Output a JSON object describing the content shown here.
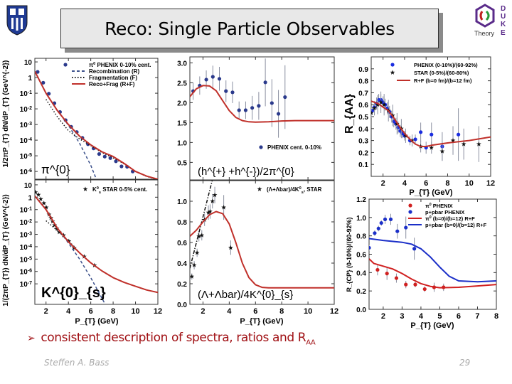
{
  "slide": {
    "title": "Reco: Single Particle Observables",
    "bullet_marker": "➢",
    "bullet_text": "consistent description of spectra, ratios and R",
    "bullet_sub": "AA",
    "author": "Steffen A. Bass",
    "page_number": "29",
    "logo_left": "Duke University shield",
    "logo_right": {
      "letters": "DUKE",
      "word": "Theory"
    }
  },
  "chart_data": [
    {
      "type": "scatter",
      "yscale": "log",
      "xlim": [
        1,
        12
      ],
      "ylim": [
        3.2e-07,
        17
      ],
      "xticks": [
        2,
        4,
        6,
        8,
        10,
        12
      ],
      "xtick_labels": false,
      "yticks": [
        10,
        1,
        0.1,
        0.01,
        0.001,
        0.0001,
        1e-05,
        1e-06
      ],
      "xlabel": "",
      "ylabel": "1/2πP_{T} dN/dP_{T} (GeV^{-2})",
      "annotation": "π^{0}",
      "series": [
        {
          "name": "π^{0} PHENIX 0-10% cent.",
          "kind": "points",
          "marker": "circle",
          "color": "#2b3a8c",
          "x": [
            1.25,
            1.75,
            2.25,
            2.75,
            3.25,
            3.75,
            4.25,
            4.75,
            5.25,
            5.75,
            6.25,
            6.75,
            7.25,
            7.75,
            8.25,
            8.75,
            9.25,
            9.75
          ],
          "y": [
            2.3,
            0.47,
            0.093,
            0.023,
            0.0063,
            0.0019,
            0.00071,
            0.00033,
            0.00014,
            5.5e-05,
            3e-05,
            1.3e-05,
            8.9e-06,
            7.2e-06,
            4.5e-06,
            2.1e-06,
            2e-06,
            1e-06
          ]
        },
        {
          "name": "Recombination (R)",
          "kind": "line",
          "style": "dashed",
          "color": "#3a4f8a",
          "x": [
            1,
            2,
            3,
            4,
            5,
            6,
            6.5
          ],
          "y": [
            2.5,
            0.1,
            0.0079,
            0.00089,
            6.3e-05,
            2.5e-06,
            3.2e-07
          ]
        },
        {
          "name": "Fragmentation (F)",
          "kind": "line",
          "style": "dotted",
          "color": "#111111",
          "x": [
            2,
            3,
            4,
            5,
            6,
            7,
            8,
            9,
            10,
            11,
            12
          ],
          "y": [
            0.04,
            0.0032,
            0.0004,
            0.00012,
            4.5e-05,
            1.6e-05,
            7.5e-06,
            3e-06,
            1e-06,
            4.8e-07,
            3e-07
          ]
        },
        {
          "name": "Reco+Frag (R+F)",
          "kind": "line",
          "style": "solid",
          "color": "#c0302a",
          "x": [
            1,
            2,
            3,
            4,
            5,
            6,
            7,
            8,
            9,
            10,
            11,
            12
          ],
          "y": [
            2.5,
            0.1,
            0.0079,
            0.001,
            0.00018,
            5e-05,
            1.8e-05,
            9e-06,
            3.2e-06,
            1e-06,
            5e-07,
            3.2e-07
          ]
        }
      ]
    },
    {
      "type": "scatter",
      "yscale": "log",
      "xlim": [
        1,
        12
      ],
      "ylim": [
        2.2e-09,
        25
      ],
      "xticks": [
        2,
        4,
        6,
        8,
        10,
        12
      ],
      "xtick_labels": true,
      "yticks": [
        10,
        1,
        0.1,
        0.01,
        0.001,
        0.0001,
        1e-05,
        1e-06,
        1e-07
      ],
      "xlabel": "P_{T} (GeV)",
      "ylabel": "1/(2πP_{T}) dN/dP_{T} (GeV^{-2})",
      "annotation": "K^{0}_{s}",
      "series": [
        {
          "name": "K^{0}_{s} STAR 0-5% cent.",
          "kind": "points",
          "marker": "star",
          "color": "#111111",
          "x": [
            1.06,
            1.32,
            1.53,
            1.81,
            2.02,
            2.27,
            2.44,
            2.59,
            2.76,
            2.97,
            3.18,
            3.57,
            4.04,
            4.52,
            5.41,
            6.33
          ],
          "y": [
            2.5,
            1.6,
            0.71,
            0.33,
            0.15,
            0.04,
            0.021,
            0.011,
            0.0055,
            0.0029,
            0.0015,
            0.00083,
            0.00028,
            7.9e-05,
            1.6e-05,
            3.1e-06
          ]
        },
        {
          "kind": "line",
          "style": "dashed",
          "color": "#3a4f8a",
          "x": [
            1,
            2,
            3,
            4,
            5,
            6,
            7.2
          ],
          "y": [
            1.26,
            0.1,
            0.0032,
            0.0002,
            1e-05,
            3.2e-07,
            3.2e-09
          ]
        },
        {
          "kind": "line",
          "style": "dotted",
          "color": "#111111",
          "x": [
            2,
            3,
            4,
            5,
            6,
            7,
            8,
            9,
            10,
            11,
            12
          ],
          "y": [
            0.0126,
            0.002,
            0.00032,
            3.2e-05,
            5e-06,
            1.1e-06,
            3.2e-07,
            1.3e-07,
            6.3e-08,
            3.2e-08,
            2e-08
          ]
        },
        {
          "kind": "line",
          "style": "solid",
          "color": "#c0302a",
          "x": [
            1,
            2,
            3,
            4,
            5,
            6,
            7,
            8,
            9,
            10,
            11,
            12
          ],
          "y": [
            1.26,
            0.1,
            0.0032,
            0.00025,
            3.2e-05,
            5e-06,
            1.1e-06,
            3.2e-07,
            1.3e-07,
            6.3e-08,
            3.2e-08,
            2e-08
          ]
        }
      ]
    },
    {
      "type": "scatter",
      "yscale": "linear",
      "xlim": [
        1,
        12
      ],
      "ylim": [
        0.06,
        3.15
      ],
      "xticks": [
        2,
        4,
        6,
        8,
        10,
        12
      ],
      "xtick_labels": false,
      "yticks": [
        0.5,
        1.0,
        1.5,
        2.0,
        2.5,
        3.0
      ],
      "ytick_decimals": 1,
      "xlabel": "",
      "ylabel": "",
      "annotation": "(h^{+} +h^{-})/2π^{0}",
      "series": [
        {
          "name": "PHENIX cent. 0-10%",
          "kind": "points",
          "marker": "circle",
          "color": "#2b3a8c",
          "x": [
            1.25,
            1.75,
            2.25,
            2.75,
            3.25,
            3.75,
            4.25,
            4.75,
            5.25,
            5.75,
            6.25,
            6.75,
            7.25,
            7.75,
            8.25
          ],
          "y": [
            2.29,
            2.43,
            2.58,
            2.65,
            2.6,
            2.29,
            2.26,
            1.81,
            1.81,
            1.87,
            1.92,
            2.51,
            1.99,
            1.72,
            2.14
          ],
          "err": [
            0.22,
            0.23,
            0.23,
            0.28,
            0.3,
            0.27,
            0.27,
            0.22,
            0.22,
            0.3,
            0.35,
            0.6,
            0.6,
            0.6,
            0.8
          ]
        },
        {
          "kind": "line",
          "style": "solid",
          "color": "#c0302a",
          "x": [
            1,
            1.5,
            2,
            2.5,
            3,
            3.5,
            4,
            4.5,
            5,
            5.5,
            6,
            7,
            8,
            9,
            12
          ],
          "y": [
            2.15,
            2.35,
            2.43,
            2.42,
            2.3,
            2.05,
            1.8,
            1.63,
            1.55,
            1.52,
            1.51,
            1.52,
            1.54,
            1.55,
            1.55
          ]
        }
      ]
    },
    {
      "type": "scatter",
      "yscale": "linear",
      "xlim": [
        1,
        12
      ],
      "ylim": [
        0,
        1.2
      ],
      "xticks": [
        2,
        4,
        6,
        8,
        10,
        12
      ],
      "xtick_labels": true,
      "yticks": [
        0,
        0.2,
        0.4,
        0.6,
        0.8,
        1.0
      ],
      "ytick_decimals": 1,
      "xlabel": "P_{T} (GeV)",
      "ylabel": "",
      "annotation": "(Λ+Λbar)/4K^{0}_{s}",
      "series": [
        {
          "name": "(Λ+Λbar)/4K^{0}_{s}, STAR",
          "kind": "points",
          "marker": "star",
          "color": "#111111",
          "x": [
            1.15,
            1.33,
            1.55,
            1.69,
            1.91,
            2.12,
            2.41,
            2.54,
            2.72,
            2.9,
            3.58,
            4.11
          ],
          "y": [
            0.27,
            0.38,
            0.5,
            0.66,
            0.67,
            0.82,
            0.89,
            0.9,
            1.0,
            1.06,
            0.94,
            0.55
          ],
          "err": [
            0.03,
            0.04,
            0.04,
            0.05,
            0.05,
            0.06,
            0.07,
            0.07,
            0.07,
            0.08,
            0.12,
            0.07
          ]
        },
        {
          "kind": "line",
          "style": "dashdot",
          "color": "#111111",
          "x": [
            1.0,
            1.5,
            2.0,
            2.7
          ],
          "y": [
            0.35,
            0.6,
            0.85,
            1.2
          ]
        },
        {
          "kind": "line",
          "style": "solid",
          "color": "#c0302a",
          "x": [
            1,
            1.5,
            2,
            2.5,
            3,
            3.5,
            4,
            4.5,
            5,
            5.5,
            6,
            6.5,
            7,
            12
          ],
          "y": [
            0.66,
            0.72,
            0.8,
            0.87,
            0.9,
            0.88,
            0.78,
            0.6,
            0.4,
            0.26,
            0.19,
            0.165,
            0.16,
            0.16
          ]
        }
      ]
    },
    {
      "type": "scatter",
      "yscale": "linear",
      "xlim": [
        0.9,
        12
      ],
      "ylim": [
        0,
        1.0
      ],
      "xticks": [
        2,
        4,
        6,
        8,
        10,
        12
      ],
      "xtick_labels": true,
      "yticks": [
        0.1,
        0.2,
        0.3,
        0.4,
        0.5,
        0.6,
        0.7,
        0.8,
        0.9
      ],
      "ytick_decimals": 1,
      "xlabel": "P_{T} (GeV)",
      "ylabel": "R_{AA}",
      "annotation": "",
      "series": [
        {
          "name": "PHENIX (0-10%)/(60-92%)",
          "kind": "points",
          "marker": "circle",
          "color": "#1a2de0",
          "x": [
            1.0,
            1.2,
            1.4,
            1.6,
            1.8,
            2.0,
            2.2,
            2.4,
            2.6,
            2.8,
            3.0,
            3.2,
            3.4,
            3.6,
            3.8,
            4.0,
            4.5,
            5.0,
            5.5,
            6.0,
            6.5,
            7.5,
            9.0
          ],
          "y": [
            0.55,
            0.58,
            0.61,
            0.64,
            0.64,
            0.62,
            0.6,
            0.57,
            0.54,
            0.5,
            0.46,
            0.44,
            0.41,
            0.38,
            0.36,
            0.34,
            0.3,
            0.31,
            0.37,
            0.24,
            0.35,
            0.25,
            0.35
          ],
          "err": [
            0.03,
            0.04,
            0.05,
            0.05,
            0.05,
            0.05,
            0.05,
            0.05,
            0.05,
            0.05,
            0.05,
            0.05,
            0.05,
            0.05,
            0.04,
            0.04,
            0.04,
            0.04,
            0.08,
            0.05,
            0.1,
            0.12,
            0.22
          ]
        },
        {
          "name": "STAR (0-5%)/(60-80%)",
          "kind": "points",
          "marker": "star",
          "color": "#111111",
          "x": [
            0.9,
            1.2,
            1.5,
            1.8,
            2.1,
            2.5,
            2.9,
            3.3,
            3.7,
            4.1,
            4.7,
            5.5,
            6.5,
            7.5,
            8.5,
            9.5,
            10.9
          ],
          "y": [
            0.53,
            0.57,
            0.6,
            0.62,
            0.6,
            0.55,
            0.51,
            0.44,
            0.4,
            0.34,
            0.3,
            0.25,
            0.24,
            0.21,
            0.3,
            0.27,
            0.27
          ],
          "err": [
            0.04,
            0.06,
            0.08,
            0.09,
            0.09,
            0.09,
            0.09,
            0.09,
            0.08,
            0.06,
            0.05,
            0.05,
            0.05,
            0.08,
            0.12,
            0.13,
            0.15
          ]
        },
        {
          "name": "R+F (b=0 fm)/(b=12 fm)",
          "kind": "line",
          "style": "solid",
          "color": "#c0302a",
          "x": [
            0.9,
            1.5,
            2,
            2.5,
            3,
            3.5,
            4,
            4.5,
            5,
            5.5,
            6,
            6.5,
            8,
            10,
            12
          ],
          "y": [
            0.63,
            0.61,
            0.58,
            0.55,
            0.49,
            0.42,
            0.36,
            0.31,
            0.27,
            0.25,
            0.25,
            0.26,
            0.28,
            0.3,
            0.33
          ]
        }
      ]
    },
    {
      "type": "scatter",
      "yscale": "linear",
      "xlim": [
        1.25,
        8
      ],
      "ylim": [
        0,
        1.2
      ],
      "xticks": [
        2,
        3,
        4,
        5,
        6,
        7,
        8
      ],
      "xtick_labels": true,
      "yticks": [
        0,
        0.2,
        0.4,
        0.6,
        0.8,
        1.0,
        1.2
      ],
      "ytick_decimals": 1,
      "xlabel": "P_{T} (GeV)",
      "ylabel": "R_{CP} (0-10%)/(60-92%)",
      "annotation": "",
      "series": [
        {
          "name": "π^{0} PHENIX",
          "kind": "points",
          "marker": "circle",
          "color": "#d02020",
          "x": [
            1.7,
            2.2,
            2.7,
            3.2,
            3.7,
            4.2,
            4.7,
            5.2
          ],
          "y": [
            0.43,
            0.39,
            0.34,
            0.27,
            0.27,
            0.22,
            0.24,
            0.24
          ],
          "err": [
            0.06,
            0.07,
            0.05,
            0.04,
            0.03,
            0.03,
            0.05,
            0.04
          ]
        },
        {
          "name": "p+pbar PHENIX",
          "kind": "points",
          "marker": "circle",
          "color": "#1b2fc8",
          "x": [
            1.25,
            1.55,
            1.75,
            1.9,
            2.1,
            2.4,
            2.75,
            3.2,
            3.65
          ],
          "y": [
            0.67,
            0.83,
            0.88,
            0.94,
            0.98,
            0.98,
            0.85,
            0.89,
            0.66
          ],
          "err": [
            0.03,
            0.03,
            0.03,
            0.03,
            0.05,
            0.06,
            0.08,
            0.12,
            0.12
          ]
        },
        {
          "name": "π^{0} (b=0)/(b=12) R+F",
          "kind": "line",
          "style": "solid",
          "color": "#d02020",
          "x": [
            1.25,
            1.5,
            2,
            2.5,
            3,
            3.5,
            4,
            4.5,
            5,
            6,
            7,
            8
          ],
          "y": [
            0.55,
            0.5,
            0.47,
            0.44,
            0.39,
            0.33,
            0.28,
            0.25,
            0.235,
            0.24,
            0.255,
            0.27
          ]
        },
        {
          "name": "p+pbar (b=0)/(b=12) R+F",
          "kind": "line",
          "style": "solid",
          "color": "#1b2fc8",
          "x": [
            1.25,
            2,
            3,
            3.5,
            4,
            4.5,
            5,
            5.5,
            6,
            7,
            8
          ],
          "y": [
            0.77,
            0.75,
            0.73,
            0.71,
            0.66,
            0.57,
            0.46,
            0.36,
            0.31,
            0.3,
            0.31
          ]
        }
      ]
    }
  ]
}
